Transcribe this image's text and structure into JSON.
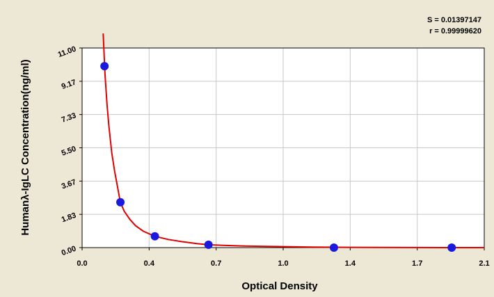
{
  "chart_data": {
    "type": "scatter",
    "xlabel": "Optical  Density",
    "ylabel": "Humanλ-IgLC Concentration(ng/ml)",
    "xlim": [
      0.0,
      2.1
    ],
    "ylim": [
      0.0,
      11.0
    ],
    "x_ticks": [
      "0.0",
      "0.4",
      "0.7",
      "1.0",
      "1.4",
      "1.7",
      "2.1"
    ],
    "y_ticks": [
      "0.00",
      "1.83",
      "3.67",
      "5.50",
      "7.33",
      "9.17",
      "11.00"
    ],
    "grid": true,
    "stats": {
      "s": "S = 0.01397147",
      "r": "r = 0.99999620"
    },
    "points": [
      {
        "x": 0.117,
        "y": 10.0
      },
      {
        "x": 0.2,
        "y": 2.5
      },
      {
        "x": 0.38,
        "y": 0.625
      },
      {
        "x": 0.66,
        "y": 0.156
      },
      {
        "x": 1.315,
        "y": 0.0
      },
      {
        "x": 1.93,
        "y": 0.0
      }
    ],
    "curve": [
      [
        0.11,
        11.8
      ],
      [
        0.115,
        10.6
      ],
      [
        0.12,
        9.5
      ],
      [
        0.13,
        7.9
      ],
      [
        0.14,
        6.7
      ],
      [
        0.155,
        5.2
      ],
      [
        0.17,
        4.2
      ],
      [
        0.185,
        3.35
      ],
      [
        0.2,
        2.5
      ],
      [
        0.22,
        2.0
      ],
      [
        0.25,
        1.55
      ],
      [
        0.28,
        1.2
      ],
      [
        0.32,
        0.9
      ],
      [
        0.38,
        0.625
      ],
      [
        0.45,
        0.45
      ],
      [
        0.52,
        0.33
      ],
      [
        0.6,
        0.22
      ],
      [
        0.66,
        0.156
      ],
      [
        0.75,
        0.12
      ],
      [
        0.85,
        0.09
      ],
      [
        1.0,
        0.06
      ],
      [
        1.2,
        0.03
      ],
      [
        1.4,
        0.015
      ],
      [
        1.7,
        0.005
      ],
      [
        2.1,
        0.0
      ]
    ],
    "point_color": "#1a1adf",
    "curve_color": "#e00000"
  }
}
